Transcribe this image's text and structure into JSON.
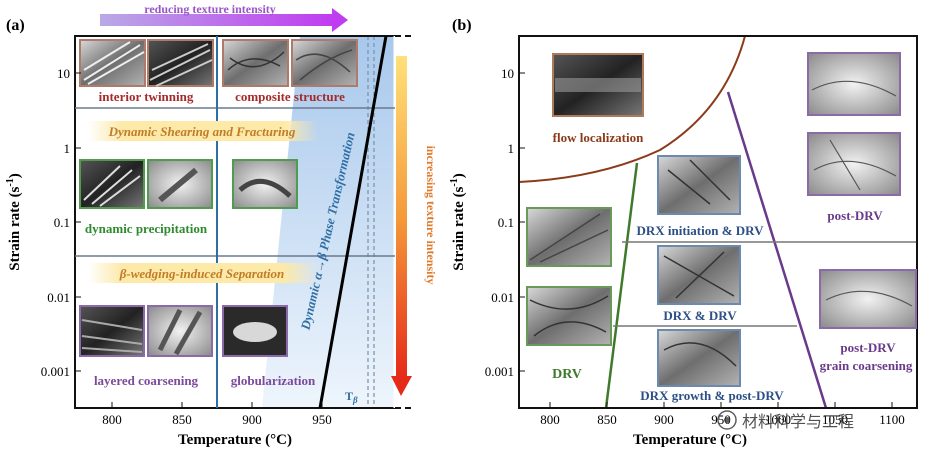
{
  "panel_a": {
    "label": "(a)",
    "x_title": "Temperature (°C)",
    "y_title": "Strain rate (s",
    "y_title_sup": "-1",
    "y_title_end": ")",
    "x_ticks": [
      "800",
      "850",
      "900",
      "950"
    ],
    "y_ticks": [
      "10",
      "1",
      "0.1",
      "0.01",
      "0.001"
    ],
    "top_arrow_label": "reducing texture intensity",
    "right_arrow_label": "increasing texture intensity",
    "regions": {
      "interior_twinning": "interior twinning",
      "composite_structure": "composite structure",
      "dynamic_shearing": "Dynamic Shearing and Fracturing",
      "dynamic_precipitation": "dynamic precipitation",
      "wedging": "β-wedging-induced Separation",
      "layered_coarsening": "layered coarsening",
      "globularization": "globularization",
      "phase_transformation": "Dynamic α→β Phase Transformation",
      "t_beta": "T",
      "t_beta_sub": "β"
    },
    "colors": {
      "twinning": "#a52a2a",
      "precipitation": "#2e8b2e",
      "coarsening": "#7b4a9b",
      "phase_band": "#c5dcf2",
      "vline": "#2f6fa5"
    }
  },
  "panel_b": {
    "label": "(b)",
    "x_title": "Temperature (°C)",
    "y_title": "Strain rate (s",
    "y_title_sup": "-1",
    "y_title_end": ")",
    "x_ticks": [
      "800",
      "850",
      "900",
      "950",
      "1000",
      "1050",
      "1100"
    ],
    "y_ticks": [
      "10",
      "1",
      "0.1",
      "0.01",
      "0.001"
    ],
    "regions": {
      "flow_localization": "flow localization",
      "drx_initiation": "DRX initiation & DRV",
      "drx_drv": "DRX & DRV",
      "drx_growth": "DRX growth & post-DRV",
      "drv": "DRV",
      "post_drv": "post-DRV",
      "post_drv_coarsening_1": "post-DRV",
      "post_drv_coarsening_2": "grain coarsening"
    },
    "colors": {
      "flow": "#8b3a1a",
      "drv": "#3f7a2a",
      "drx": "#2c4f86",
      "post": "#6a3a8a"
    }
  },
  "watermark": "材料科学与工程"
}
